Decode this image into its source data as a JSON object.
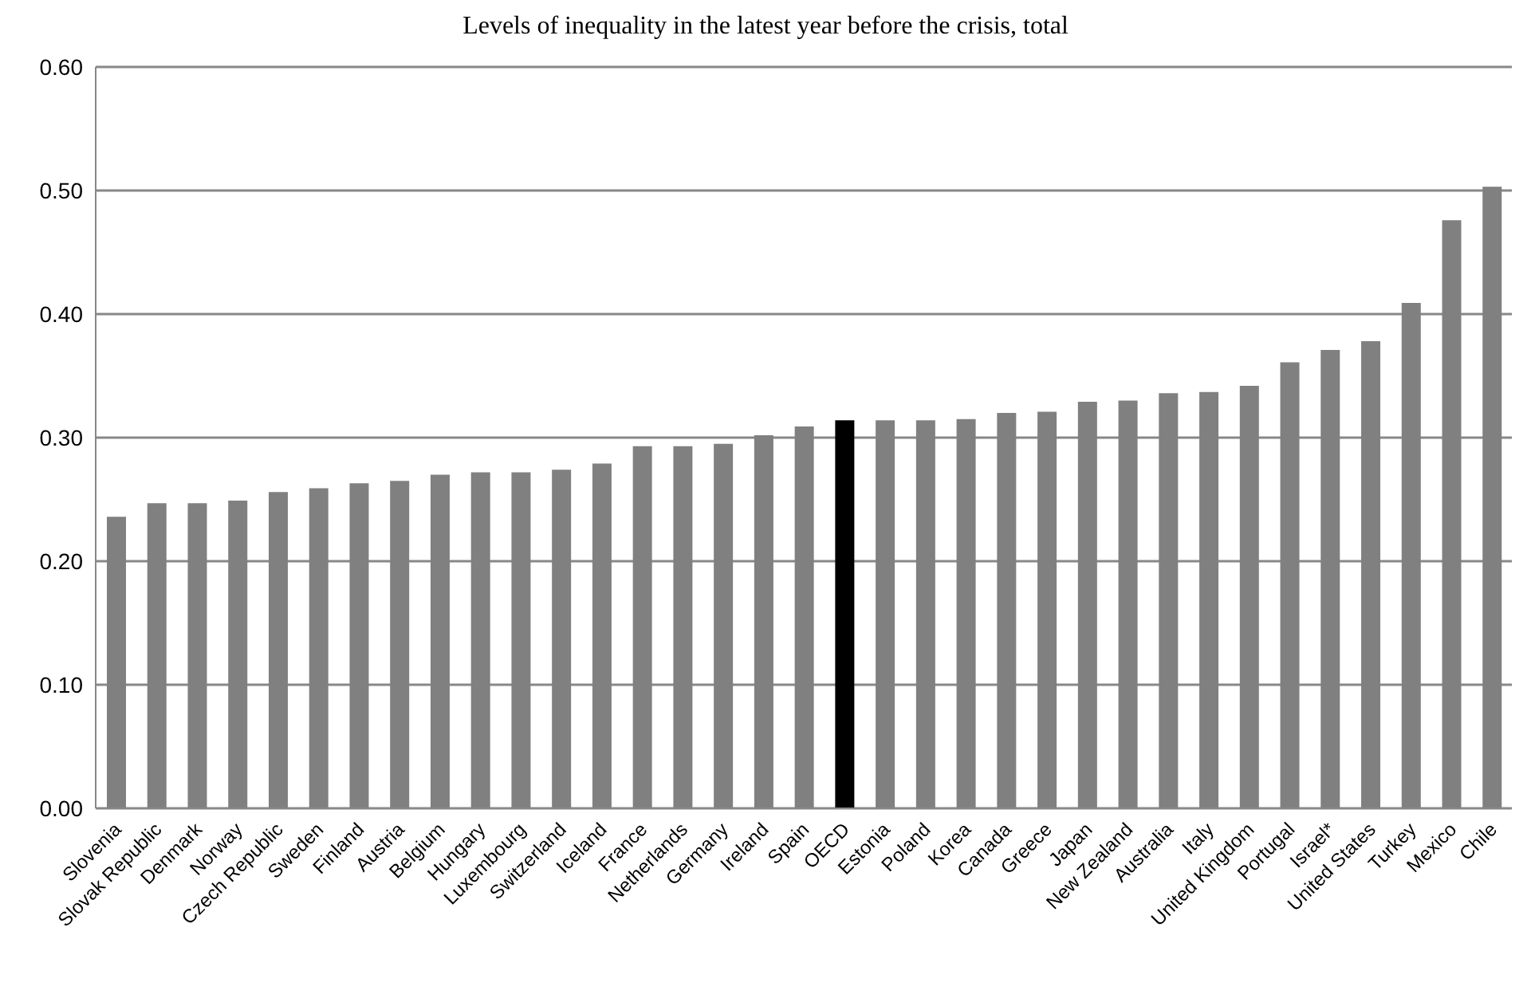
{
  "chart_data": {
    "type": "bar",
    "title": "Levels of inequality in the latest year before the crisis, total",
    "categories": [
      "Slovenia",
      "Slovak Republic",
      "Denmark",
      "Norway",
      "Czech Republic",
      "Sweden",
      "Finland",
      "Austria",
      "Belgium",
      "Hungary",
      "Luxembourg",
      "Switzerland",
      "Iceland",
      "France",
      "Netherlands",
      "Germany",
      "Ireland",
      "Spain",
      "OECD",
      "Estonia",
      "Poland",
      "Korea",
      "Canada",
      "Greece",
      "Japan",
      "New Zealand",
      "Australia",
      "Italy",
      "United Kingdom",
      "Portugal",
      "Israel*",
      "United States",
      "Turkey",
      "Mexico",
      "Chile"
    ],
    "values": [
      0.236,
      0.247,
      0.247,
      0.249,
      0.256,
      0.259,
      0.263,
      0.265,
      0.27,
      0.272,
      0.272,
      0.274,
      0.279,
      0.293,
      0.293,
      0.295,
      0.302,
      0.309,
      0.314,
      0.314,
      0.314,
      0.315,
      0.32,
      0.321,
      0.329,
      0.33,
      0.336,
      0.337,
      0.342,
      0.361,
      0.371,
      0.378,
      0.409,
      0.476,
      0.503
    ],
    "colors": [
      "#808080",
      "#808080",
      "#808080",
      "#808080",
      "#808080",
      "#808080",
      "#808080",
      "#808080",
      "#808080",
      "#808080",
      "#808080",
      "#808080",
      "#808080",
      "#808080",
      "#808080",
      "#808080",
      "#808080",
      "#808080",
      "#000000",
      "#808080",
      "#808080",
      "#808080",
      "#808080",
      "#808080",
      "#808080",
      "#808080",
      "#808080",
      "#808080",
      "#808080",
      "#808080",
      "#808080",
      "#808080",
      "#808080",
      "#808080",
      "#808080"
    ],
    "ylim": [
      0,
      0.6
    ],
    "yticks": [
      {
        "value": 0,
        "label": "0.00"
      },
      {
        "value": 0.1,
        "label": "0.10"
      },
      {
        "value": 0.2,
        "label": "0.20"
      },
      {
        "value": 0.3,
        "label": "0.30"
      },
      {
        "value": 0.4,
        "label": "0.40"
      },
      {
        "value": 0.5,
        "label": "0.50"
      },
      {
        "value": 0.6,
        "label": "0.60"
      }
    ],
    "grid": "y"
  }
}
